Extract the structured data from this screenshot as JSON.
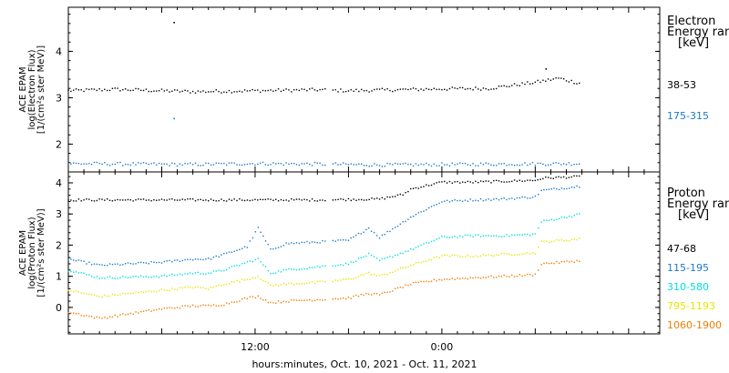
{
  "chart_data": [
    {
      "type": "scatter",
      "panel": "electron",
      "ylabel_lines": [
        "ACE EPAM",
        "log(Electron Flux)",
        "[1/(cm²s ster MeV)]"
      ],
      "ylim": [
        1.4,
        4.95
      ],
      "yticks": [
        2,
        3,
        4
      ],
      "x_range_hours": [
        0,
        38
      ],
      "legend_title_lines": [
        "Electron",
        "Energy ranges",
        "[keV]"
      ],
      "series": [
        {
          "name": "38-53",
          "color": "#000000",
          "x": [
            0,
            3,
            6,
            8,
            12,
            16,
            18,
            21,
            24,
            27,
            30,
            31.5,
            32,
            33
          ],
          "y": [
            3.15,
            3.18,
            3.15,
            3.13,
            3.15,
            3.17,
            3.15,
            3.17,
            3.19,
            3.2,
            3.33,
            3.42,
            3.38,
            3.3
          ]
        },
        {
          "name": "175-315",
          "color": "#1f78c8",
          "x": [
            0,
            4,
            8,
            12,
            16,
            20,
            24,
            28,
            33
          ],
          "y": [
            1.58,
            1.57,
            1.56,
            1.58,
            1.57,
            1.55,
            1.56,
            1.57,
            1.58
          ]
        }
      ],
      "outliers": [
        {
          "series": "38-53",
          "x": 6.8,
          "y": 4.62
        },
        {
          "series": "175-315",
          "x": 6.8,
          "y": 2.55
        },
        {
          "series": "38-53",
          "x": 30.7,
          "y": 3.62
        }
      ]
    },
    {
      "type": "scatter",
      "panel": "proton",
      "ylabel_lines": [
        "ACE EPAM",
        "log(Proton Flux)",
        "[1/(cm²s ster MeV)]"
      ],
      "ylim": [
        -0.85,
        4.35
      ],
      "yticks": [
        0,
        1,
        2,
        3,
        4
      ],
      "x_range_hours": [
        0,
        38
      ],
      "xtick_hours": [
        12,
        24
      ],
      "xtick_labels": [
        "12:00",
        "0:00"
      ],
      "xlabel": "hours:minutes, Oct. 10, 2021 - Oct. 11, 2021",
      "legend_title_lines": [
        "Proton",
        "Energy ranges",
        "[keV]"
      ],
      "series": [
        {
          "name": "47-68",
          "color": "#000000",
          "x": [
            0,
            4,
            8,
            12,
            16,
            20,
            21.5,
            22,
            24,
            26,
            28,
            30,
            30.5,
            33
          ],
          "y": [
            3.45,
            3.45,
            3.45,
            3.45,
            3.45,
            3.48,
            3.62,
            3.8,
            4.02,
            4.02,
            4.05,
            4.08,
            4.15,
            4.2
          ]
        },
        {
          "name": "115-195",
          "color": "#1f78c8",
          "x": [
            0,
            2,
            6,
            8,
            9,
            10,
            11.5,
            12.2,
            13,
            14,
            16,
            18,
            19.3,
            20,
            22,
            24,
            26,
            28,
            30,
            30.4,
            33
          ],
          "y": [
            1.55,
            1.35,
            1.45,
            1.55,
            1.55,
            1.7,
            1.95,
            2.55,
            1.85,
            2.05,
            2.1,
            2.15,
            2.55,
            2.25,
            2.9,
            3.4,
            3.45,
            3.48,
            3.55,
            3.75,
            3.9
          ]
        },
        {
          "name": "310-580",
          "color": "#00dede",
          "x": [
            0,
            2,
            6,
            8,
            9,
            10,
            11.5,
            12.2,
            13,
            14,
            16,
            18,
            19.3,
            20,
            22,
            24,
            26,
            28,
            30,
            30.4,
            33
          ],
          "y": [
            1.2,
            0.95,
            1.0,
            1.1,
            1.1,
            1.2,
            1.45,
            1.55,
            1.1,
            1.2,
            1.3,
            1.4,
            1.7,
            1.5,
            1.85,
            2.25,
            2.3,
            2.3,
            2.35,
            2.75,
            3.0
          ]
        },
        {
          "name": "795-1193",
          "color": "#e6e600",
          "x": [
            0,
            2,
            6,
            8,
            9,
            10,
            11.5,
            12.2,
            13,
            14,
            16,
            18,
            19.3,
            20,
            22,
            24,
            26,
            28,
            30,
            30.4,
            33
          ],
          "y": [
            0.55,
            0.35,
            0.55,
            0.65,
            0.6,
            0.75,
            0.9,
            1.0,
            0.7,
            0.75,
            0.8,
            0.9,
            1.1,
            1.0,
            1.35,
            1.65,
            1.65,
            1.7,
            1.75,
            2.1,
            2.2
          ]
        },
        {
          "name": "1060-1900",
          "color": "#f07c00",
          "x": [
            0,
            2,
            6,
            8,
            9,
            10,
            11.5,
            12.2,
            13,
            14,
            16,
            18,
            19.3,
            20,
            22,
            24,
            26,
            28,
            30,
            30.4,
            33
          ],
          "y": [
            -0.15,
            -0.35,
            -0.05,
            0.05,
            0.05,
            0.1,
            0.3,
            0.35,
            0.15,
            0.2,
            0.25,
            0.3,
            0.45,
            0.4,
            0.75,
            0.9,
            0.95,
            1.0,
            1.05,
            1.4,
            1.5
          ]
        }
      ]
    }
  ]
}
